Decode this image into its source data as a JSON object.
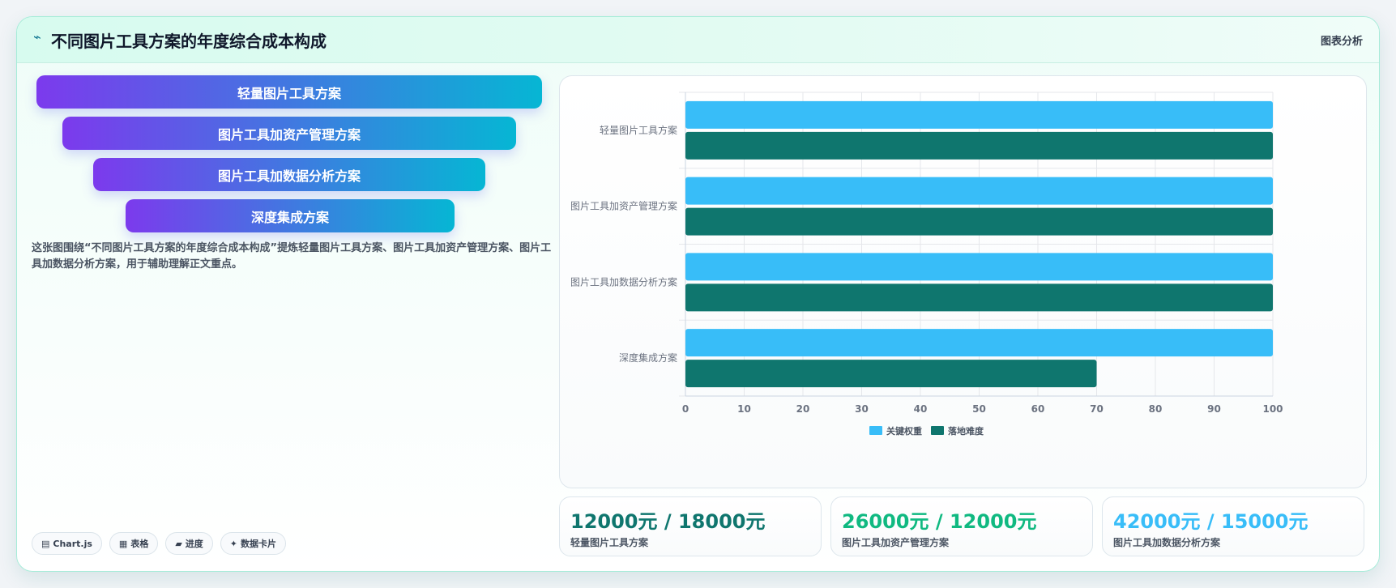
{
  "header": {
    "icon": "wave-icon",
    "title": "不同图片工具方案的年度综合成本构成",
    "tag": "图表分析"
  },
  "funnel": [
    {
      "label": "轻量图片工具方案"
    },
    {
      "label": "图片工具加资产管理方案"
    },
    {
      "label": "图片工具加数据分析方案"
    },
    {
      "label": "深度集成方案"
    }
  ],
  "description": "这张图围绕“不同图片工具方案的年度综合成本构成”提炼轻量图片工具方案、图片工具加资产管理方案、图片工具加数据分析方案，用于辅助理解正文重点。",
  "chips": [
    {
      "icon": "chart-icon",
      "label": "Chart.js"
    },
    {
      "icon": "table-icon",
      "label": "表格"
    },
    {
      "icon": "progress-icon",
      "label": "进度"
    },
    {
      "icon": "sparkle-icon",
      "label": "数据卡片"
    }
  ],
  "chart_data": {
    "type": "bar",
    "orientation": "horizontal",
    "categories": [
      "轻量图片工具方案",
      "图片工具加资产管理方案",
      "图片工具加数据分析方案",
      "深度集成方案"
    ],
    "series": [
      {
        "name": "关键权重",
        "color": "#38bdf8",
        "values": [
          100,
          100,
          100,
          100
        ]
      },
      {
        "name": "落地难度",
        "color": "#0f766e",
        "values": [
          100,
          100,
          100,
          70
        ]
      }
    ],
    "xlim": [
      0,
      100
    ],
    "xticks": [
      0,
      10,
      20,
      30,
      40,
      50,
      60,
      70,
      80,
      90,
      100
    ],
    "grid": true,
    "legend": "bottom"
  },
  "kpis": [
    {
      "value": "12000元 / 18000元",
      "label": "轻量图片工具方案",
      "color": "#0f766e"
    },
    {
      "value": "26000元 / 12000元",
      "label": "图片工具加资产管理方案",
      "color": "#10b981"
    },
    {
      "value": "42000元 / 15000元",
      "label": "图片工具加数据分析方案",
      "color": "#38bdf8"
    }
  ]
}
